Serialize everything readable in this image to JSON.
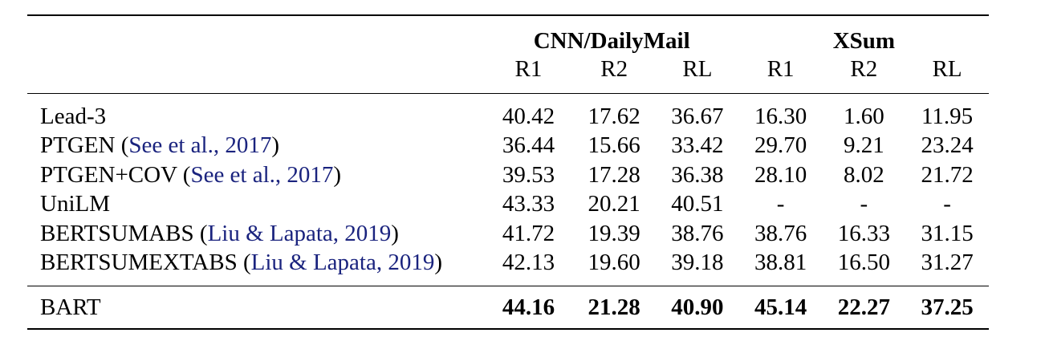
{
  "table": {
    "group_headers": [
      "CNN/DailyMail",
      "XSum"
    ],
    "metric_headers": [
      "R1",
      "R2",
      "RL",
      "R1",
      "R2",
      "RL"
    ],
    "rows": [
      {
        "model": "Lead-3",
        "open": "",
        "cite": "",
        "close": "",
        "values": [
          "40.42",
          "17.62",
          "36.67",
          "16.30",
          "1.60",
          "11.95"
        ]
      },
      {
        "model": "PTGEN",
        "open": " (",
        "cite": "See et al., 2017",
        "close": ")",
        "values": [
          "36.44",
          "15.66",
          "33.42",
          "29.70",
          "9.21",
          "23.24"
        ]
      },
      {
        "model": "PTGEN+COV",
        "open": " (",
        "cite": "See et al., 2017",
        "close": ")",
        "values": [
          "39.53",
          "17.28",
          "36.38",
          "28.10",
          "8.02",
          "21.72"
        ]
      },
      {
        "model": "UniLM",
        "open": "",
        "cite": "",
        "close": "",
        "values": [
          "43.33",
          "20.21",
          "40.51",
          "-",
          "-",
          "-"
        ]
      },
      {
        "model": "BERTSUMABS",
        "open": " (",
        "cite": "Liu & Lapata, 2019",
        "close": ")",
        "values": [
          "41.72",
          "19.39",
          "38.76",
          "38.76",
          "16.33",
          "31.15"
        ]
      },
      {
        "model": "BERTSUMEXTABS",
        "open": " (",
        "cite": "Liu & Lapata, 2019",
        "close": ")",
        "values": [
          "42.13",
          "19.60",
          "39.18",
          "38.81",
          "16.50",
          "31.27"
        ]
      }
    ],
    "final_row": {
      "model": "BART",
      "values": [
        "44.16",
        "21.28",
        "40.90",
        "45.14",
        "22.27",
        "37.25"
      ]
    }
  }
}
